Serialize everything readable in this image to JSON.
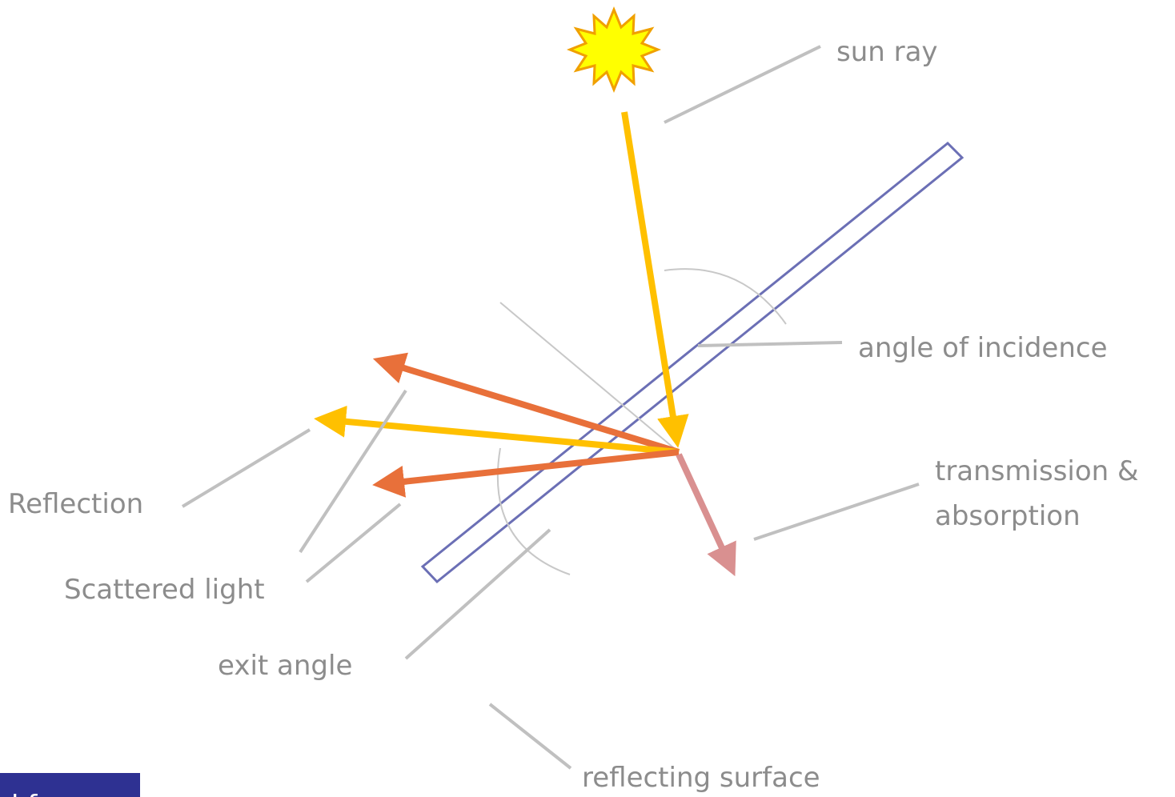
{
  "labels": {
    "sun_ray": "sun ray",
    "angle_of_incidence": "angle of incidence",
    "transmission": [
      "transmission &",
      "absorption"
    ],
    "reflection": "Reflection",
    "scattered_light": "Scattered light",
    "exit_angle": "exit angle",
    "reflecting_surface": "reflecting surface",
    "corner_tab": "l f"
  }
}
